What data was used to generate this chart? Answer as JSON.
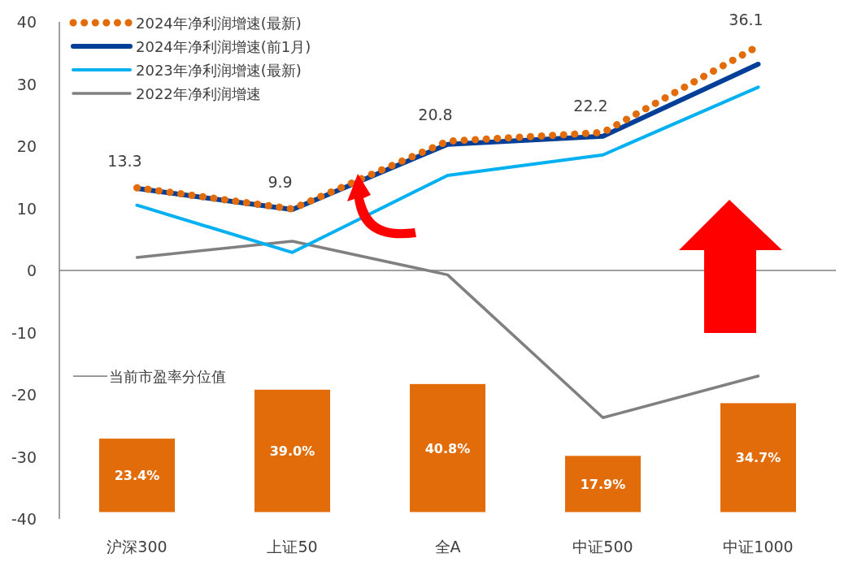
{
  "chart_data": {
    "type": "line",
    "categories": [
      "沪深300",
      "上证50",
      "全A",
      "中证500",
      "中证1000"
    ],
    "series": [
      {
        "name": "2024年净利润增速(最新)",
        "color": "#e36c0a",
        "values": [
          13.3,
          9.9,
          20.8,
          22.2,
          36.1
        ],
        "line_style": "dotted",
        "value_labels": [
          "13.3",
          "9.9",
          "20.8",
          "22.2",
          "36.1"
        ]
      },
      {
        "name": "2024年净利润增速(前1月)",
        "color": "#003f98",
        "values": [
          13.2,
          9.8,
          20.3,
          21.6,
          33.2
        ]
      },
      {
        "name": "2023年净利润增速(最新)",
        "color": "#00b0f0",
        "values": [
          10.5,
          2.9,
          15.3,
          18.6,
          29.5
        ]
      },
      {
        "name": "2022年净利润增速",
        "color": "#808080",
        "values": [
          2.1,
          4.7,
          -0.7,
          -23.7,
          -17.0
        ]
      },
      {
        "name": "当前市盈率分位值",
        "type": "bar",
        "axis": "y2",
        "color": "#e36c0a",
        "values": [
          23.4,
          39.0,
          40.8,
          17.9,
          34.7
        ],
        "value_labels": [
          "23.4%",
          "39.0%",
          "40.8%",
          "17.9%",
          "34.7%"
        ]
      }
    ],
    "ylim": [
      -40,
      40
    ],
    "yticks": [
      -40,
      -30,
      -20,
      -10,
      0,
      10,
      20,
      30,
      40
    ],
    "y2lim": [
      -2.2,
      156.2
    ],
    "legend": "top left",
    "marker": "none"
  }
}
